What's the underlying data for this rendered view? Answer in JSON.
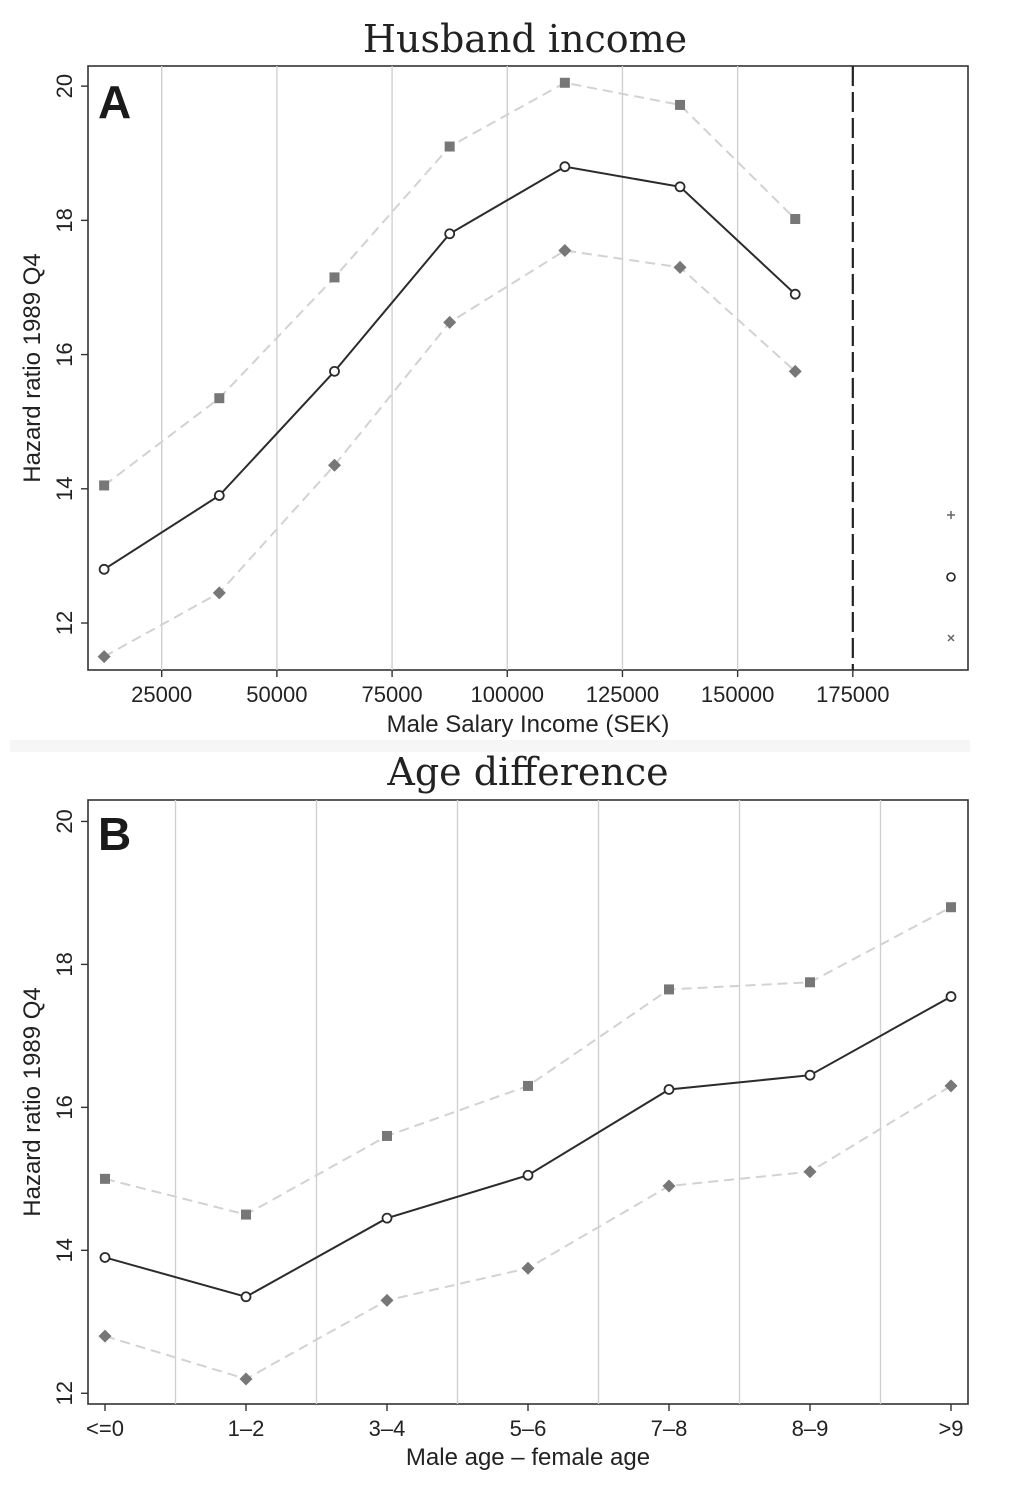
{
  "colors": {
    "estimate": "#2b2b2b",
    "ci": "#d2d2d2",
    "ci_marker": "#777777",
    "grid": "#d0d0d0"
  },
  "chart_data": [
    {
      "panel": "A",
      "type": "line",
      "title": "Husband income",
      "xlabel": "Male Salary Income (SEK)",
      "ylabel": "Hazard ratio 1989 Q4",
      "x": [
        12500,
        37500,
        62500,
        87500,
        112500,
        137500,
        162500
      ],
      "xticks": [
        25000,
        50000,
        75000,
        100000,
        125000,
        150000,
        175000
      ],
      "yticks": [
        12,
        14,
        16,
        18,
        20
      ],
      "xlim": [
        9000,
        200000
      ],
      "ylim": [
        11.3,
        20.3
      ],
      "vline": 175000,
      "grid": true,
      "series": [
        {
          "role": "upper",
          "marker": "square",
          "values": [
            14.05,
            15.35,
            17.15,
            19.1,
            20.05,
            19.72,
            18.02
          ]
        },
        {
          "role": "estimate",
          "marker": "circle",
          "values": [
            12.8,
            13.9,
            15.75,
            17.8,
            18.8,
            18.5,
            16.9
          ]
        },
        {
          "role": "lower",
          "marker": "diamond",
          "values": [
            11.5,
            12.45,
            14.35,
            16.48,
            17.55,
            17.3,
            15.75
          ]
        }
      ],
      "legend_markers": [
        "+",
        "o",
        "x"
      ]
    },
    {
      "panel": "B",
      "type": "line",
      "title": "Age difference",
      "xlabel": "Male age – female age",
      "ylabel": "Hazard ratio 1989 Q4",
      "categories": [
        "<=0",
        "1–2",
        "3–4",
        "5–6",
        "7–8",
        "8–9",
        ">9"
      ],
      "yticks": [
        12,
        14,
        16,
        18,
        20
      ],
      "ylim": [
        11.85,
        20.3
      ],
      "grid": true,
      "series": [
        {
          "role": "upper",
          "marker": "square",
          "values": [
            15.0,
            14.5,
            15.6,
            16.3,
            17.65,
            17.75,
            18.8
          ]
        },
        {
          "role": "estimate",
          "marker": "circle",
          "values": [
            13.9,
            13.35,
            14.45,
            15.05,
            16.25,
            16.45,
            17.55
          ]
        },
        {
          "role": "lower",
          "marker": "diamond",
          "values": [
            12.8,
            12.2,
            13.3,
            13.75,
            14.9,
            15.1,
            16.3
          ]
        }
      ]
    }
  ]
}
